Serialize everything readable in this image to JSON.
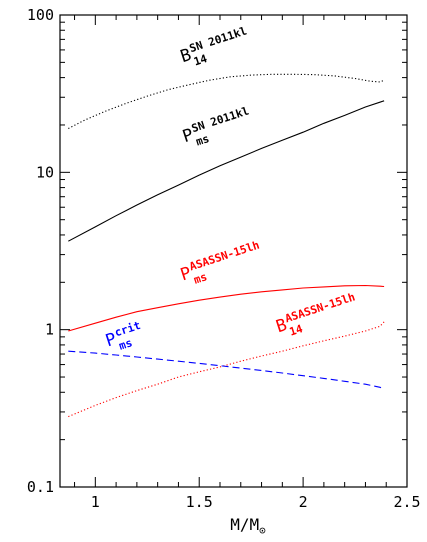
{
  "chart_data": {
    "type": "line",
    "xlabel_main": "M/M",
    "xlabel_sub": "⊙",
    "ylabel": "",
    "xlim": [
      0.83,
      2.5
    ],
    "ylim": [
      0.1,
      100
    ],
    "yscale": "log",
    "x_ticks": [
      1,
      1.5,
      2,
      2.5
    ],
    "x_tick_labels": [
      "1",
      "1.5",
      "2",
      "2.5"
    ],
    "y_ticks": [
      0.1,
      1,
      10,
      100
    ],
    "y_tick_labels": [
      "0.1",
      "1",
      "10",
      "100"
    ],
    "grid": false,
    "colors": {
      "black": "#000000",
      "red": "#ff0000",
      "blue": "#0000ff"
    },
    "series": [
      {
        "color": "#000000",
        "style": "dotted",
        "points": [
          [
            0.87,
            19
          ],
          [
            0.95,
            21.5
          ],
          [
            1.05,
            24.5
          ],
          [
            1.15,
            27.5
          ],
          [
            1.25,
            30.5
          ],
          [
            1.35,
            33.5
          ],
          [
            1.45,
            36
          ],
          [
            1.55,
            38.5
          ],
          [
            1.65,
            40.5
          ],
          [
            1.75,
            41.5
          ],
          [
            1.85,
            42
          ],
          [
            1.95,
            42
          ],
          [
            2.05,
            41.8
          ],
          [
            2.15,
            41
          ],
          [
            2.25,
            39.5
          ],
          [
            2.32,
            38
          ],
          [
            2.37,
            37.5
          ],
          [
            2.39,
            38.5
          ]
        ]
      },
      {
        "color": "#000000",
        "style": "solid",
        "points": [
          [
            0.87,
            3.65
          ],
          [
            1.0,
            4.5
          ],
          [
            1.1,
            5.3
          ],
          [
            1.2,
            6.2
          ],
          [
            1.3,
            7.2
          ],
          [
            1.4,
            8.3
          ],
          [
            1.5,
            9.6
          ],
          [
            1.6,
            11
          ],
          [
            1.7,
            12.5
          ],
          [
            1.8,
            14.2
          ],
          [
            1.9,
            16
          ],
          [
            2.0,
            18
          ],
          [
            2.1,
            20.5
          ],
          [
            2.2,
            23
          ],
          [
            2.3,
            26
          ],
          [
            2.39,
            28.5
          ]
        ]
      },
      {
        "color": "#ff0000",
        "style": "solid",
        "points": [
          [
            0.87,
            0.98
          ],
          [
            1.0,
            1.1
          ],
          [
            1.1,
            1.2
          ],
          [
            1.2,
            1.3
          ],
          [
            1.3,
            1.38
          ],
          [
            1.4,
            1.46
          ],
          [
            1.5,
            1.54
          ],
          [
            1.6,
            1.61
          ],
          [
            1.7,
            1.68
          ],
          [
            1.8,
            1.74
          ],
          [
            1.9,
            1.79
          ],
          [
            2.0,
            1.84
          ],
          [
            2.1,
            1.87
          ],
          [
            2.2,
            1.9
          ],
          [
            2.3,
            1.91
          ],
          [
            2.37,
            1.89
          ],
          [
            2.39,
            1.88
          ]
        ]
      },
      {
        "color": "#ff0000",
        "style": "dotted",
        "points": [
          [
            0.87,
            0.28
          ],
          [
            1.0,
            0.33
          ],
          [
            1.1,
            0.37
          ],
          [
            1.2,
            0.41
          ],
          [
            1.3,
            0.45
          ],
          [
            1.4,
            0.5
          ],
          [
            1.5,
            0.54
          ],
          [
            1.6,
            0.58
          ],
          [
            1.7,
            0.63
          ],
          [
            1.8,
            0.68
          ],
          [
            1.9,
            0.73
          ],
          [
            2.0,
            0.79
          ],
          [
            2.1,
            0.85
          ],
          [
            2.2,
            0.91
          ],
          [
            2.3,
            0.98
          ],
          [
            2.37,
            1.05
          ],
          [
            2.39,
            1.12
          ]
        ]
      },
      {
        "color": "#0000ff",
        "style": "dashed",
        "points": [
          [
            0.87,
            0.73
          ],
          [
            1.0,
            0.71
          ],
          [
            1.1,
            0.69
          ],
          [
            1.2,
            0.67
          ],
          [
            1.3,
            0.65
          ],
          [
            1.4,
            0.63
          ],
          [
            1.5,
            0.61
          ],
          [
            1.6,
            0.59
          ],
          [
            1.7,
            0.57
          ],
          [
            1.8,
            0.55
          ],
          [
            1.9,
            0.53
          ],
          [
            2.0,
            0.51
          ],
          [
            2.1,
            0.49
          ],
          [
            2.2,
            0.47
          ],
          [
            2.3,
            0.45
          ],
          [
            2.37,
            0.43
          ],
          [
            2.39,
            0.42
          ]
        ]
      }
    ],
    "annotations": [
      {
        "main": "B",
        "sup": "SN 2011kl",
        "sub": "14",
        "color": "#000000",
        "x": 1.42,
        "y": 50
      },
      {
        "main": "P",
        "sup": "SN 2011kl",
        "sub": "ms",
        "color": "#000000",
        "x": 1.43,
        "y": 15.5
      },
      {
        "main": "P",
        "sup": "ASASSN-15lh",
        "sub": "ms",
        "color": "#ff0000",
        "x": 1.42,
        "y": 2.05
      },
      {
        "main": "B",
        "sup": "ASASSN-15lh",
        "sub": "14",
        "color": "#ff0000",
        "x": 1.88,
        "y": 0.96
      },
      {
        "main": "P",
        "sup": "crit",
        "sub": "ms",
        "color": "#0000ff",
        "x": 1.06,
        "y": 0.78
      }
    ]
  }
}
